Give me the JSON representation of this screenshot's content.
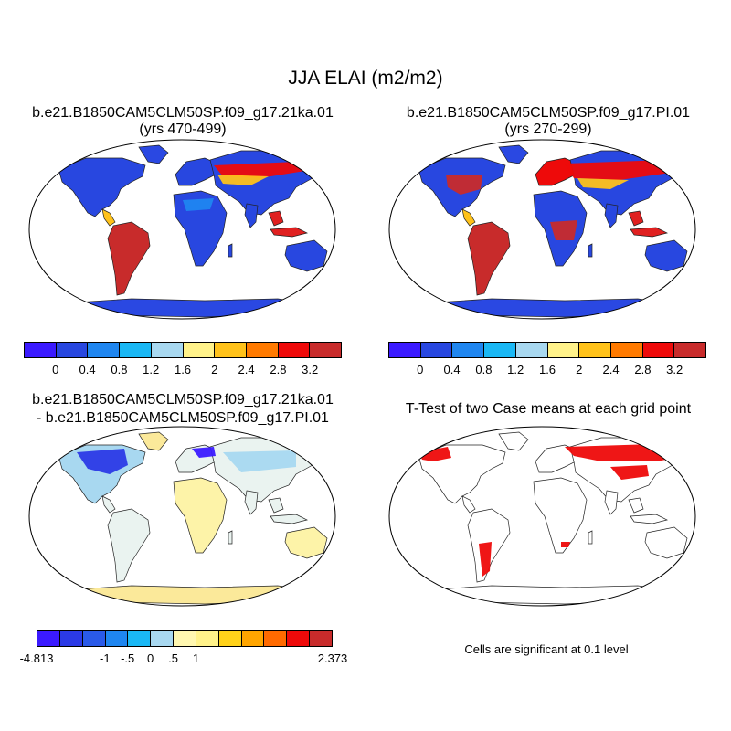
{
  "main_title": "JJA ELAI (m2/m2)",
  "panel_tl": {
    "title": "b.e21.B1850CAM5CLM50SP.f09_g17.21ka.01",
    "subtitle": "(yrs 470-499)"
  },
  "panel_tr": {
    "title": "b.e21.B1850CAM5CLM50SP.f09_g17.PI.01",
    "subtitle": "(yrs 270-299)"
  },
  "panel_bl": {
    "title": "b.e21.B1850CAM5CLM50SP.f09_g17.21ka.01",
    "subtitle": "- b.e21.B1850CAM5CLM50SP.f09_g17.PI.01"
  },
  "panel_br": {
    "title": "T-Test of two Case means at each grid point",
    "note": "Cells are significant at 0.1 level"
  },
  "colorbar_top": {
    "colors": [
      "#3b1aff",
      "#2847e0",
      "#1f86f0",
      "#1ab8f5",
      "#a8d8f0",
      "#fff28a",
      "#ffc21a",
      "#ff7a00",
      "#ee0a0a",
      "#c82b2b"
    ],
    "labels": [
      "0",
      "0.4",
      "0.8",
      "1.2",
      "1.6",
      "2",
      "2.4",
      "2.8",
      "3.2"
    ]
  },
  "colorbar_diff": {
    "colors": [
      "#3b1aff",
      "#2b3ae6",
      "#2a5ae8",
      "#1f86f0",
      "#1ab8f5",
      "#a8d8f0",
      "#fff7b0",
      "#fff28a",
      "#ffd21a",
      "#ffa500",
      "#ff6a00",
      "#ee0a0a",
      "#c82b2b"
    ],
    "labels": [
      "-4.813",
      "-1",
      "-.5",
      "0",
      ".5",
      "1",
      "2.373"
    ]
  },
  "map_colors": {
    "ocean": "#ffffff",
    "ice": "#2a48e2",
    "sig": "#ee0a0a",
    "diff_land": "#fdf3a8",
    "diff_ice": "#fbe99a"
  }
}
